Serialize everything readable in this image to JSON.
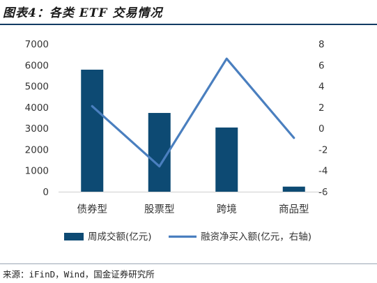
{
  "header": {
    "title": "图表4：各类 ETF 交易情况"
  },
  "footer": {
    "source": "来源：iFinD，Wind，国金证券研究所"
  },
  "chart_data": {
    "type": "bar",
    "categories": [
      "债券型",
      "股票型",
      "跨境",
      "商品型"
    ],
    "series": [
      {
        "name": "周成交额(亿元)",
        "type": "bar",
        "axis": "left",
        "values": [
          5780,
          3730,
          3040,
          240
        ],
        "color": "#0d4a73"
      },
      {
        "name": "融资净买入额(亿元，右轴)",
        "type": "line",
        "axis": "right",
        "values": [
          2.1,
          -3.6,
          6.6,
          -0.9
        ],
        "color": "#4a7fbf"
      }
    ],
    "ylim_left": [
      0,
      7000
    ],
    "yticks_left": [
      "7000",
      "6000",
      "5000",
      "4000",
      "3000",
      "2000",
      "1000",
      "0"
    ],
    "ylim_right": [
      -6,
      8
    ],
    "yticks_right": [
      "8",
      "6",
      "4",
      "2",
      "0",
      "-2",
      "-4",
      "-6"
    ],
    "grid": false,
    "legend_position": "bottom"
  }
}
